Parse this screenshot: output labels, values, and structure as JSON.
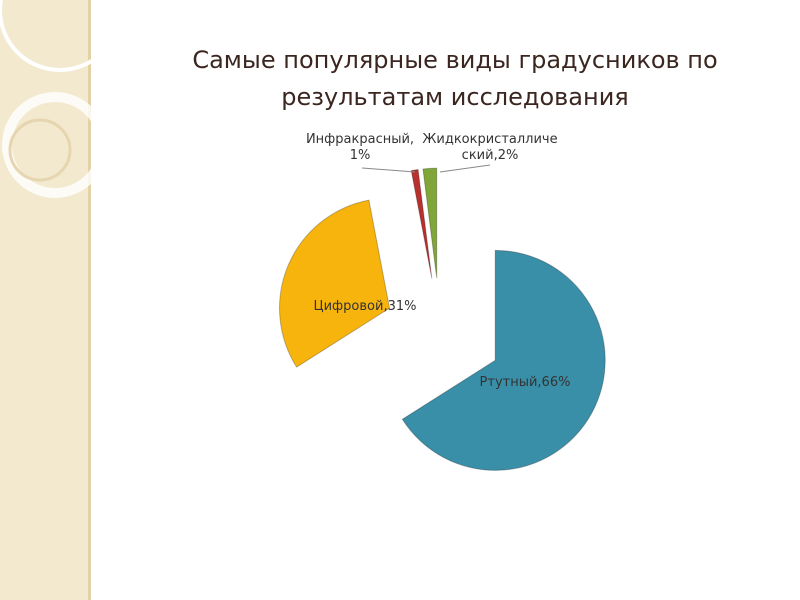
{
  "chart_data": {
    "type": "pie",
    "title": "Самые популярные виды градусников по результатам исследования",
    "categories": [
      "Ртутный",
      "Цифровой",
      "Инфракрасный",
      "Жидкокристаллический"
    ],
    "values": [
      66,
      31,
      1,
      2
    ],
    "value_labels": [
      "Ртутный,66%",
      "Цифровой,31%",
      "Инфракрасный,1%",
      "Жидкокристаллический,2%"
    ],
    "colors": [
      "#3a8fa8",
      "#f7b40c",
      "#b8312f",
      "#7fa637"
    ]
  }
}
